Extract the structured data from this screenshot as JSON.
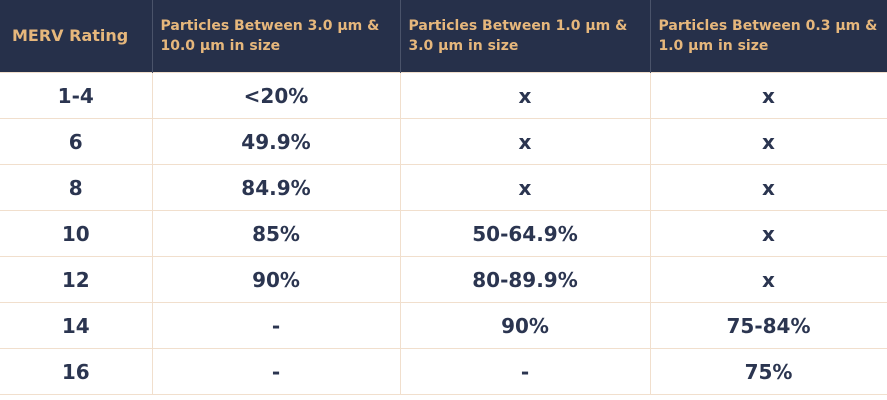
{
  "table": {
    "header": [
      "MERV Rating",
      "Particles Between 3.0 μm & 10.0 μm in size",
      "Particles Between 1.0 μm & 3.0 μm in size",
      "Particles Between 0.3 μm & 1.0 μm in size"
    ],
    "rows": [
      [
        "1-4",
        "<20%",
        "x",
        "x"
      ],
      [
        "6",
        "49.9%",
        "x",
        "x"
      ],
      [
        "8",
        "84.9%",
        "x",
        "x"
      ],
      [
        "10",
        "85%",
        "50-64.9%",
        "x"
      ],
      [
        "12",
        "90%",
        "80-89.9%",
        "x"
      ],
      [
        "14",
        "-",
        "90%",
        "75-84%"
      ],
      [
        "16",
        "-",
        "-",
        "75%"
      ]
    ]
  }
}
